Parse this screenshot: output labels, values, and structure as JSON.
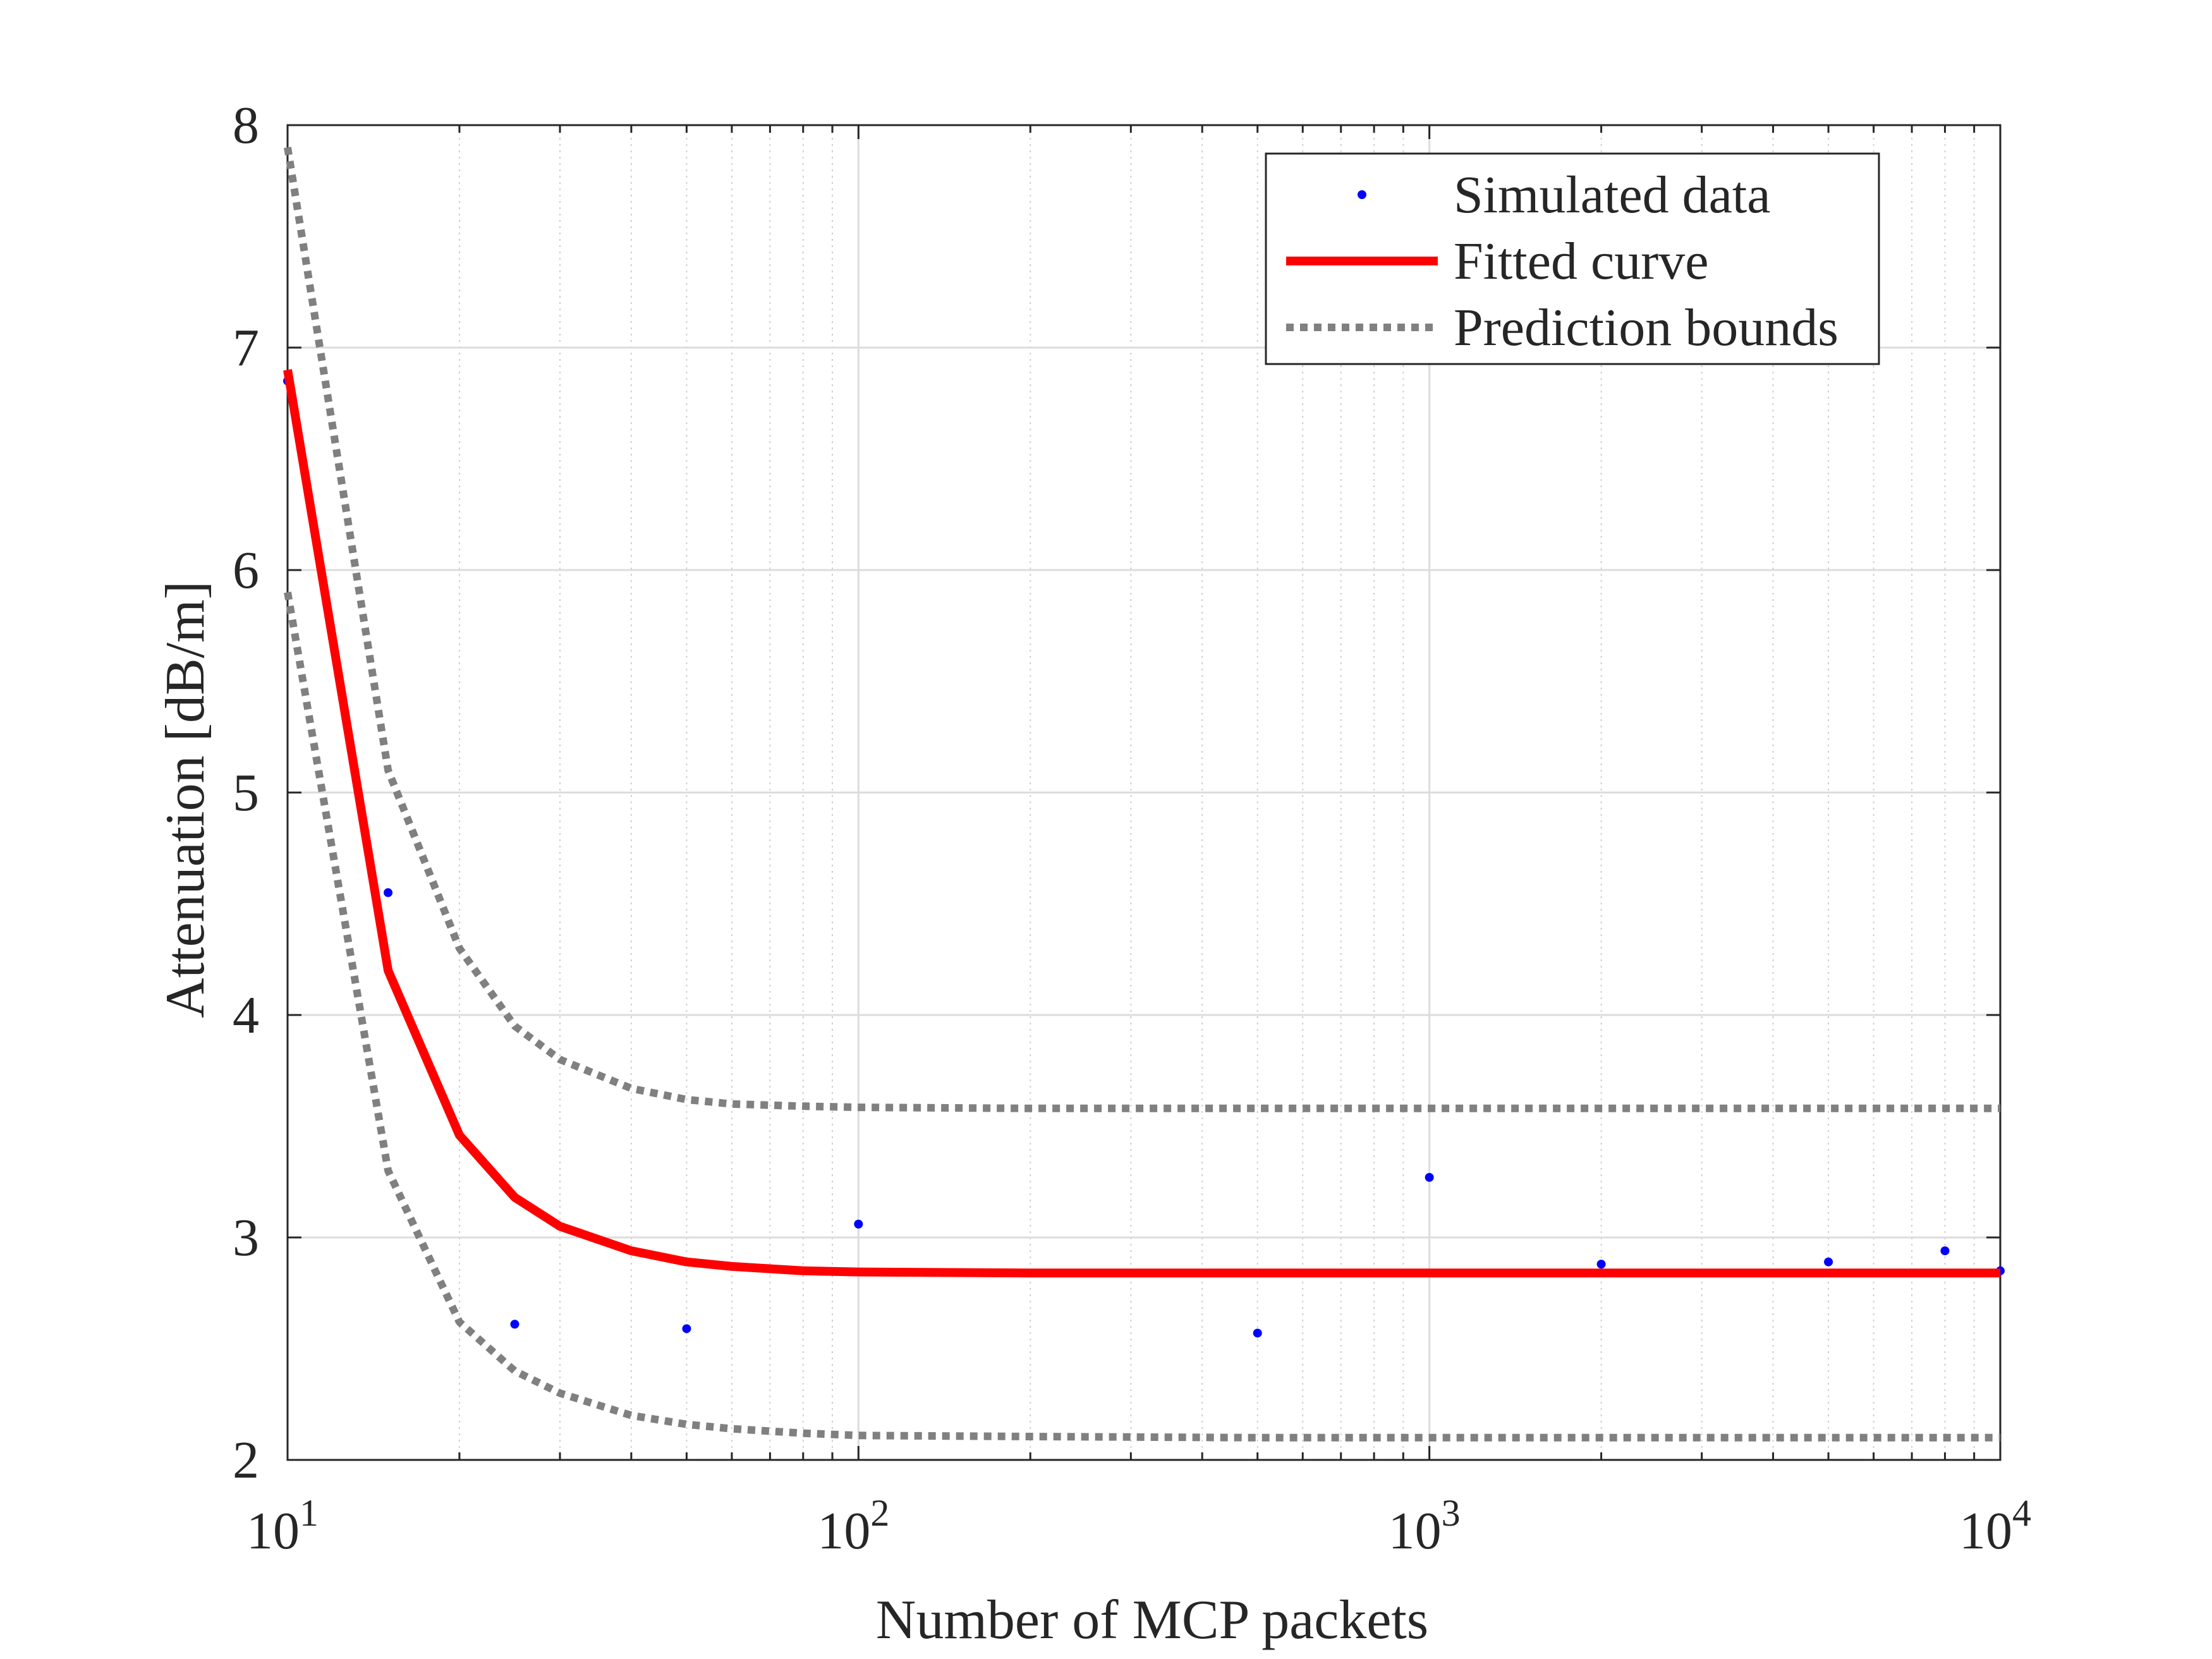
{
  "chart_data": {
    "type": "scatter",
    "title": "",
    "xlabel": "Number of MCP packets",
    "ylabel": "Attenuation [dB/m]",
    "x_scale": "log",
    "xlim": [
      10,
      10000
    ],
    "ylim": [
      2,
      8
    ],
    "grid": true,
    "legend_position": "top-right",
    "x_ticks": [
      {
        "base": "10",
        "exp": "1"
      },
      {
        "base": "10",
        "exp": "2"
      },
      {
        "base": "10",
        "exp": "3"
      },
      {
        "base": "10",
        "exp": "4"
      }
    ],
    "y_ticks": [
      "2",
      "3",
      "4",
      "5",
      "6",
      "7",
      "8"
    ],
    "series": [
      {
        "name": "Simulated data",
        "kind": "points",
        "color": "#0000ff",
        "x": [
          10,
          15,
          25,
          50,
          100,
          500,
          1000,
          2000,
          5000,
          8000,
          10000
        ],
        "y": [
          6.85,
          4.55,
          2.61,
          2.59,
          3.06,
          2.57,
          3.27,
          2.88,
          2.89,
          2.94,
          2.85
        ]
      },
      {
        "name": "Fitted curve",
        "kind": "line",
        "color": "#ff0000",
        "x": [
          10,
          15,
          20,
          25,
          30,
          40,
          50,
          60,
          80,
          100,
          200,
          500,
          1000,
          2000,
          5000,
          10000
        ],
        "y": [
          6.9,
          4.2,
          3.46,
          3.18,
          3.05,
          2.94,
          2.89,
          2.87,
          2.85,
          2.845,
          2.84,
          2.84,
          2.84,
          2.84,
          2.84,
          2.84
        ]
      },
      {
        "name": "Prediction bounds",
        "kind": "dotted",
        "color": "#808080",
        "x": [
          10,
          15,
          20,
          25,
          30,
          40,
          50,
          60,
          80,
          100,
          200,
          500,
          1000,
          2000,
          5000,
          10000
        ],
        "y": [
          7.9,
          5.1,
          4.3,
          3.95,
          3.8,
          3.67,
          3.62,
          3.6,
          3.59,
          3.585,
          3.58,
          3.58,
          3.58,
          3.58,
          3.58,
          3.58
        ]
      },
      {
        "name": "",
        "kind": "dotted",
        "color": "#808080",
        "x": [
          10,
          15,
          20,
          25,
          30,
          40,
          50,
          60,
          80,
          100,
          200,
          500,
          1000,
          2000,
          5000,
          10000
        ],
        "y": [
          5.9,
          3.3,
          2.62,
          2.4,
          2.3,
          2.2,
          2.16,
          2.14,
          2.12,
          2.11,
          2.105,
          2.1,
          2.1,
          2.1,
          2.1,
          2.1
        ]
      }
    ]
  }
}
